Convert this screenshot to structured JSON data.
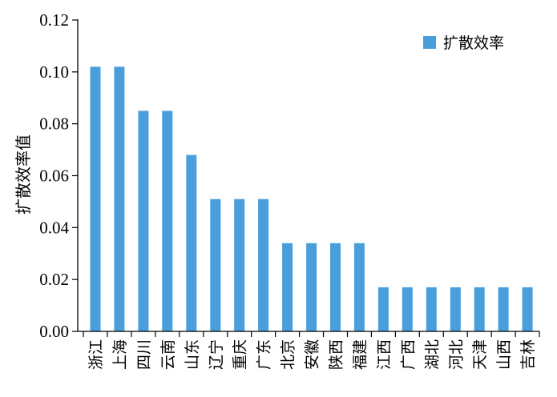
{
  "chart_data": {
    "type": "bar",
    "title": "",
    "xlabel": "",
    "ylabel": "扩散效率值",
    "ylim": [
      0,
      0.12
    ],
    "yticks": [
      "0.00",
      "0.02",
      "0.04",
      "0.06",
      "0.08",
      "0.10",
      "0.12"
    ],
    "grid": false,
    "legend_position": "top-right",
    "categories": [
      "浙江",
      "上海",
      "四川",
      "云南",
      "山东",
      "辽宁",
      "重庆",
      "广东",
      "北京",
      "安徽",
      "陕西",
      "福建",
      "江西",
      "广西",
      "湖北",
      "河北",
      "天津",
      "山西",
      "吉林"
    ],
    "series": [
      {
        "name": "扩散效率",
        "color": "#4a9fdb",
        "values": [
          0.102,
          0.102,
          0.085,
          0.085,
          0.068,
          0.051,
          0.051,
          0.051,
          0.034,
          0.034,
          0.034,
          0.034,
          0.017,
          0.017,
          0.017,
          0.017,
          0.017,
          0.017,
          0.017
        ]
      }
    ]
  }
}
